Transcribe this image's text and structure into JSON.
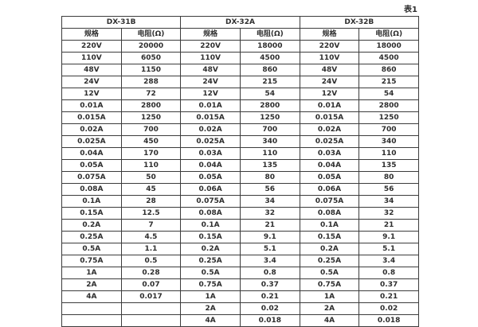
{
  "page": {
    "caption": "表1"
  },
  "table": {
    "groups": [
      {
        "label": "DX-31B"
      },
      {
        "label": "DX-32A"
      },
      {
        "label": "DX-32B"
      }
    ],
    "subheaders": {
      "spec": "规格",
      "resistance": "电阻(Ω)"
    },
    "rows": [
      [
        "220V",
        "20000",
        "220V",
        "18000",
        "220V",
        "18000"
      ],
      [
        "110V",
        "6050",
        "110V",
        "4500",
        "110V",
        "4500"
      ],
      [
        "48V",
        "1150",
        "48V",
        "860",
        "48V",
        "860"
      ],
      [
        "24V",
        "288",
        "24V",
        "215",
        "24V",
        "215"
      ],
      [
        "12V",
        "72",
        "12V",
        "54",
        "12V",
        "54"
      ],
      [
        "0.01A",
        "2800",
        "0.01A",
        "2800",
        "0.01A",
        "2800"
      ],
      [
        "0.015A",
        "1250",
        "0.015A",
        "1250",
        "0.015A",
        "1250"
      ],
      [
        "0.02A",
        "700",
        "0.02A",
        "700",
        "0.02A",
        "700"
      ],
      [
        "0.025A",
        "450",
        "0.025A",
        "340",
        "0.025A",
        "340"
      ],
      [
        "0.04A",
        "170",
        "0.03A",
        "110",
        "0.03A",
        "110"
      ],
      [
        "0.05A",
        "110",
        "0.04A",
        "135",
        "0.04A",
        "135"
      ],
      [
        "0.075A",
        "50",
        "0.05A",
        "80",
        "0.05A",
        "80"
      ],
      [
        "0.08A",
        "45",
        "0.06A",
        "56",
        "0.06A",
        "56"
      ],
      [
        "0.1A",
        "28",
        "0.075A",
        "34",
        "0.075A",
        "34"
      ],
      [
        "0.15A",
        "12.5",
        "0.08A",
        "32",
        "0.08A",
        "32"
      ],
      [
        "0.2A",
        "7",
        "0.1A",
        "21",
        "0.1A",
        "21"
      ],
      [
        "0.25A",
        "4.5",
        "0.15A",
        "9.1",
        "0.15A",
        "9.1"
      ],
      [
        "0.5A",
        "1.1",
        "0.2A",
        "5.1",
        "0.2A",
        "5.1"
      ],
      [
        "0.75A",
        "0.5",
        "0.25A",
        "3.4",
        "0.25A",
        "3.4"
      ],
      [
        "1A",
        "0.28",
        "0.5A",
        "0.8",
        "0.5A",
        "0.8"
      ],
      [
        "2A",
        "0.07",
        "0.75A",
        "0.37",
        "0.75A",
        "0.37"
      ],
      [
        "4A",
        "0.017",
        "1A",
        "0.21",
        "1A",
        "0.21"
      ],
      [
        "",
        "",
        "2A",
        "0.02",
        "2A",
        "0.02"
      ],
      [
        "",
        "",
        "4A",
        "0.018",
        "4A",
        "0.018"
      ]
    ],
    "colors": {
      "border": "#3c3c3c",
      "text": "#2e2e2e",
      "background": "#ffffff"
    }
  }
}
